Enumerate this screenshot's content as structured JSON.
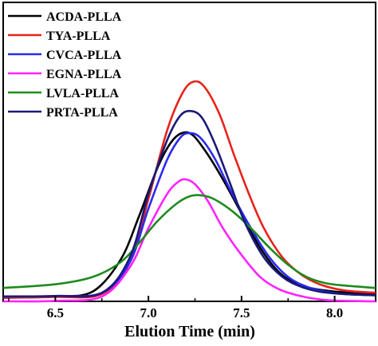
{
  "chart_data": {
    "type": "line",
    "title": "",
    "xlabel": "Elution Time (min)",
    "ylabel": "",
    "xlim": [
      6.22,
      8.22
    ],
    "ylim": [
      0,
      1
    ],
    "xticks": [
      6.5,
      7.0,
      7.5,
      8.0
    ],
    "xtick_labels": [
      "6.5",
      "7.0",
      "7.5",
      "8.0"
    ],
    "grid": false,
    "legend_position": "top-left",
    "series": [
      {
        "name": "ACDA-PLLA",
        "color": "#000000",
        "x": [
          6.22,
          6.5,
          6.7,
          6.85,
          6.95,
          7.05,
          7.12,
          7.18,
          7.24,
          7.32,
          7.4,
          7.5,
          7.6,
          7.7,
          7.8,
          7.9,
          8.0,
          8.1,
          8.22
        ],
        "y": [
          0.015,
          0.02,
          0.04,
          0.17,
          0.35,
          0.55,
          0.65,
          0.69,
          0.68,
          0.6,
          0.5,
          0.36,
          0.22,
          0.12,
          0.07,
          0.05,
          0.04,
          0.035,
          0.03
        ]
      },
      {
        "name": "TYA-PLLA",
        "color": "#e8221b",
        "x": [
          6.22,
          6.5,
          6.75,
          6.9,
          7.0,
          7.1,
          7.18,
          7.24,
          7.3,
          7.38,
          7.46,
          7.54,
          7.62,
          7.72,
          7.82,
          7.92,
          8.05,
          8.22
        ],
        "y": [
          0.015,
          0.018,
          0.03,
          0.16,
          0.42,
          0.7,
          0.85,
          0.9,
          0.88,
          0.77,
          0.6,
          0.44,
          0.3,
          0.18,
          0.11,
          0.07,
          0.045,
          0.035
        ]
      },
      {
        "name": "CVCA-PLLA",
        "color": "#2a2af0",
        "x": [
          6.22,
          6.5,
          6.75,
          6.9,
          7.0,
          7.1,
          7.17,
          7.22,
          7.28,
          7.36,
          7.45,
          7.55,
          7.65,
          7.75,
          7.85,
          7.95,
          8.05,
          8.22
        ],
        "y": [
          0.02,
          0.022,
          0.035,
          0.16,
          0.38,
          0.58,
          0.67,
          0.69,
          0.67,
          0.58,
          0.44,
          0.3,
          0.18,
          0.1,
          0.06,
          0.04,
          0.03,
          0.025
        ]
      },
      {
        "name": "EGNA-PLLA",
        "color": "#ff22ff",
        "x": [
          6.22,
          6.5,
          6.75,
          6.9,
          7.0,
          7.1,
          7.16,
          7.2,
          7.25,
          7.32,
          7.4,
          7.5,
          7.6,
          7.7,
          7.8,
          7.9,
          8.0,
          8.22
        ],
        "y": [
          0.0,
          0.002,
          0.02,
          0.14,
          0.3,
          0.44,
          0.49,
          0.5,
          0.48,
          0.41,
          0.3,
          0.19,
          0.1,
          0.05,
          0.025,
          0.01,
          0.003,
          0.0
        ]
      },
      {
        "name": "LVLA-PLLA",
        "color": "#1f8a1f",
        "x": [
          6.22,
          6.5,
          6.7,
          6.85,
          6.95,
          7.05,
          7.15,
          7.22,
          7.28,
          7.35,
          7.45,
          7.55,
          7.65,
          7.75,
          7.85,
          7.95,
          8.05,
          8.22
        ],
        "y": [
          0.055,
          0.07,
          0.1,
          0.16,
          0.24,
          0.33,
          0.4,
          0.43,
          0.435,
          0.42,
          0.37,
          0.3,
          0.22,
          0.15,
          0.1,
          0.075,
          0.065,
          0.055
        ]
      },
      {
        "name": "PRTA-PLLA",
        "color": "#1a1a7a",
        "x": [
          6.22,
          6.5,
          6.75,
          6.9,
          7.0,
          7.1,
          7.17,
          7.23,
          7.29,
          7.36,
          7.44,
          7.52,
          7.62,
          7.72,
          7.82,
          7.92,
          8.05,
          8.22
        ],
        "y": [
          0.02,
          0.022,
          0.035,
          0.18,
          0.44,
          0.66,
          0.76,
          0.78,
          0.75,
          0.64,
          0.48,
          0.32,
          0.18,
          0.1,
          0.06,
          0.04,
          0.03,
          0.025
        ]
      }
    ]
  }
}
